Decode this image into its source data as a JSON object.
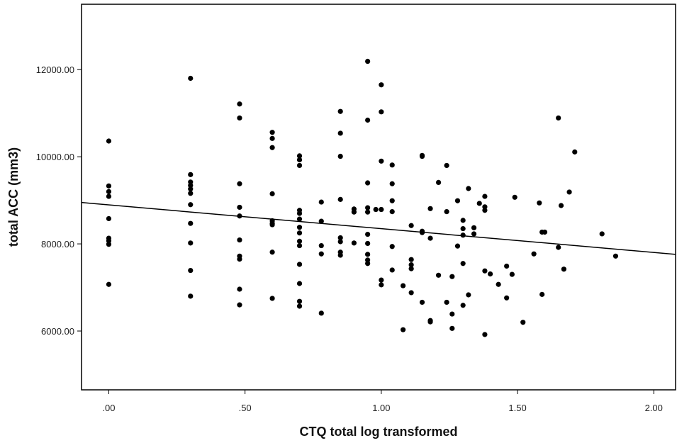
{
  "chart_data": {
    "type": "scatter",
    "title": "",
    "xlabel": "CTQ total log transformed",
    "ylabel": "total ACC (mm3)",
    "xlim": [
      -0.1,
      2.08
    ],
    "ylim": [
      4650,
      13500
    ],
    "x_ticks": [
      {
        "value": 0.0,
        "label": ".00"
      },
      {
        "value": 0.5,
        "label": ".50"
      },
      {
        "value": 1.0,
        "label": "1.00"
      },
      {
        "value": 1.5,
        "label": "1.50"
      },
      {
        "value": 2.0,
        "label": "2.00"
      }
    ],
    "y_ticks": [
      {
        "value": 6000,
        "label": "6000.00"
      },
      {
        "value": 8000,
        "label": "8000.00"
      },
      {
        "value": 10000,
        "label": "10000.00"
      },
      {
        "value": 12000,
        "label": "12000.00"
      }
    ],
    "grid": false,
    "fit_line": {
      "x": [
        -0.1,
        2.08
      ],
      "y": [
        8950,
        7760
      ]
    },
    "points": [
      [
        0.0,
        10360
      ],
      [
        0.0,
        9330
      ],
      [
        0.0,
        9200
      ],
      [
        0.0,
        9090
      ],
      [
        0.0,
        8580
      ],
      [
        0.0,
        8130
      ],
      [
        0.0,
        8070
      ],
      [
        0.0,
        7990
      ],
      [
        0.0,
        7070
      ],
      [
        0.3,
        11800
      ],
      [
        0.3,
        9590
      ],
      [
        0.3,
        9420
      ],
      [
        0.3,
        9340
      ],
      [
        0.3,
        9260
      ],
      [
        0.3,
        9160
      ],
      [
        0.3,
        8900
      ],
      [
        0.3,
        8470
      ],
      [
        0.3,
        8020
      ],
      [
        0.3,
        7390
      ],
      [
        0.3,
        6800
      ],
      [
        0.48,
        11210
      ],
      [
        0.48,
        10890
      ],
      [
        0.48,
        9380
      ],
      [
        0.48,
        8840
      ],
      [
        0.48,
        8640
      ],
      [
        0.48,
        8090
      ],
      [
        0.48,
        7720
      ],
      [
        0.48,
        7650
      ],
      [
        0.48,
        6960
      ],
      [
        0.48,
        6600
      ],
      [
        0.6,
        10560
      ],
      [
        0.6,
        10420
      ],
      [
        0.6,
        10210
      ],
      [
        0.6,
        9150
      ],
      [
        0.6,
        8530
      ],
      [
        0.6,
        8470
      ],
      [
        0.6,
        8440
      ],
      [
        0.6,
        7810
      ],
      [
        0.6,
        6750
      ],
      [
        0.7,
        10020
      ],
      [
        0.7,
        9930
      ],
      [
        0.7,
        9800
      ],
      [
        0.7,
        8770
      ],
      [
        0.7,
        8700
      ],
      [
        0.7,
        8570
      ],
      [
        0.7,
        8380
      ],
      [
        0.7,
        8250
      ],
      [
        0.7,
        8060
      ],
      [
        0.7,
        7960
      ],
      [
        0.7,
        7530
      ],
      [
        0.7,
        7090
      ],
      [
        0.7,
        6680
      ],
      [
        0.7,
        6570
      ],
      [
        0.78,
        8960
      ],
      [
        0.78,
        8520
      ],
      [
        0.78,
        7960
      ],
      [
        0.78,
        7770
      ],
      [
        0.78,
        6410
      ],
      [
        0.85,
        11040
      ],
      [
        0.85,
        10540
      ],
      [
        0.85,
        10010
      ],
      [
        0.85,
        9020
      ],
      [
        0.85,
        8140
      ],
      [
        0.85,
        8050
      ],
      [
        0.85,
        7810
      ],
      [
        0.85,
        7740
      ],
      [
        0.9,
        8800
      ],
      [
        0.9,
        8730
      ],
      [
        0.9,
        8020
      ],
      [
        0.95,
        12190
      ],
      [
        0.95,
        10840
      ],
      [
        0.95,
        9400
      ],
      [
        0.95,
        8830
      ],
      [
        0.95,
        8730
      ],
      [
        0.95,
        8220
      ],
      [
        0.95,
        8010
      ],
      [
        0.95,
        7760
      ],
      [
        0.95,
        7630
      ],
      [
        0.95,
        7550
      ],
      [
        0.98,
        8790
      ],
      [
        1.0,
        11650
      ],
      [
        1.0,
        11030
      ],
      [
        1.0,
        9900
      ],
      [
        1.0,
        8790
      ],
      [
        1.0,
        7170
      ],
      [
        1.0,
        7060
      ],
      [
        1.04,
        9810
      ],
      [
        1.04,
        9380
      ],
      [
        1.04,
        8990
      ],
      [
        1.04,
        8740
      ],
      [
        1.04,
        7940
      ],
      [
        1.04,
        7400
      ],
      [
        1.08,
        7040
      ],
      [
        1.08,
        6030
      ],
      [
        1.11,
        8420
      ],
      [
        1.11,
        7640
      ],
      [
        1.11,
        7520
      ],
      [
        1.11,
        7430
      ],
      [
        1.11,
        6880
      ],
      [
        1.15,
        10030
      ],
      [
        1.15,
        10010
      ],
      [
        1.15,
        8290
      ],
      [
        1.15,
        8260
      ],
      [
        1.15,
        6660
      ],
      [
        1.18,
        8810
      ],
      [
        1.18,
        8130
      ],
      [
        1.18,
        6240
      ],
      [
        1.18,
        6210
      ],
      [
        1.21,
        9410
      ],
      [
        1.21,
        7280
      ],
      [
        1.24,
        9800
      ],
      [
        1.24,
        8740
      ],
      [
        1.24,
        6660
      ],
      [
        1.26,
        7250
      ],
      [
        1.26,
        6390
      ],
      [
        1.26,
        6060
      ],
      [
        1.28,
        8990
      ],
      [
        1.28,
        7950
      ],
      [
        1.3,
        8540
      ],
      [
        1.3,
        8350
      ],
      [
        1.3,
        8200
      ],
      [
        1.3,
        7550
      ],
      [
        1.3,
        6590
      ],
      [
        1.32,
        9270
      ],
      [
        1.32,
        6830
      ],
      [
        1.34,
        8370
      ],
      [
        1.34,
        8230
      ],
      [
        1.36,
        8930
      ],
      [
        1.38,
        9090
      ],
      [
        1.38,
        8850
      ],
      [
        1.38,
        8770
      ],
      [
        1.38,
        7380
      ],
      [
        1.38,
        5920
      ],
      [
        1.4,
        7310
      ],
      [
        1.43,
        7070
      ],
      [
        1.46,
        7490
      ],
      [
        1.46,
        6760
      ],
      [
        1.48,
        7300
      ],
      [
        1.49,
        9070
      ],
      [
        1.52,
        6200
      ],
      [
        1.56,
        7770
      ],
      [
        1.58,
        8940
      ],
      [
        1.59,
        8270
      ],
      [
        1.59,
        6840
      ],
      [
        1.6,
        8270
      ],
      [
        1.65,
        10890
      ],
      [
        1.65,
        7920
      ],
      [
        1.66,
        8880
      ],
      [
        1.67,
        7420
      ],
      [
        1.69,
        9190
      ],
      [
        1.71,
        10110
      ],
      [
        1.81,
        8230
      ],
      [
        1.86,
        7720
      ]
    ]
  }
}
